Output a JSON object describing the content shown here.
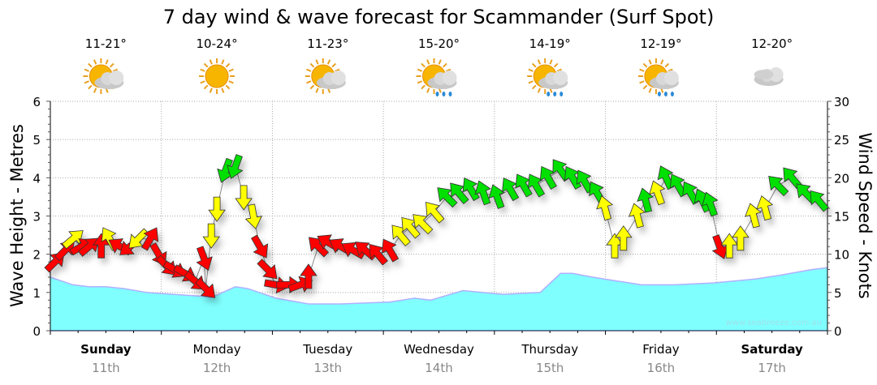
{
  "chart_data": {
    "type": "line",
    "title": "7 day wind & wave forecast for Scammander (Surf Spot)",
    "ylabel": "Wave Height - Metres",
    "ylabel_right": "Wind Speed - Knots",
    "ylim": [
      0,
      6
    ],
    "ylim_right": [
      0,
      30
    ],
    "yticks": [
      "0",
      "1",
      "2",
      "3",
      "4",
      "5",
      "6"
    ],
    "yticks_right": [
      "0",
      "5",
      "10",
      "15",
      "20",
      "25",
      "30"
    ],
    "grid": true,
    "watermark": "www.seabreeze.com.au",
    "days": [
      {
        "name": "Sunday",
        "date": "11th",
        "bold": true,
        "temp": "11-21°",
        "weather": "sun-cloud"
      },
      {
        "name": "Monday",
        "date": "12th",
        "bold": false,
        "temp": "10-24°",
        "weather": "sun"
      },
      {
        "name": "Tuesday",
        "date": "13th",
        "bold": false,
        "temp": "11-23°",
        "weather": "sun-cloud"
      },
      {
        "name": "Wednesday",
        "date": "14th",
        "bold": false,
        "temp": "15-20°",
        "weather": "sun-cloud-rain"
      },
      {
        "name": "Thursday",
        "date": "15th",
        "bold": false,
        "temp": "14-19°",
        "weather": "sun-cloud-rain"
      },
      {
        "name": "Friday",
        "date": "16th",
        "bold": false,
        "temp": "12-19°",
        "weather": "sun-cloud-rain"
      },
      {
        "name": "Saturday",
        "date": "17th",
        "bold": true,
        "temp": "12-20°",
        "weather": "cloud"
      }
    ],
    "colors": {
      "red": "#ff0000",
      "yellow": "#ffff00",
      "green": "#00e000",
      "wave": "#80ffff",
      "wave_edge": "#b0b0ff"
    },
    "wave_series": {
      "name": "Wave Height (m)",
      "points": [
        [
          0,
          1.4
        ],
        [
          4.9,
          1.2
        ],
        [
          8.4,
          1.15
        ],
        [
          11.9,
          1.15
        ],
        [
          16,
          1.1
        ],
        [
          20.7,
          1.0
        ],
        [
          24.2,
          0.97
        ],
        [
          33,
          0.9
        ],
        [
          34.8,
          0.87
        ],
        [
          40,
          1.15
        ],
        [
          42.7,
          1.1
        ],
        [
          48.8,
          0.85
        ],
        [
          55.8,
          0.7
        ],
        [
          62.8,
          0.7
        ],
        [
          73.4,
          0.75
        ],
        [
          78.7,
          0.85
        ],
        [
          82.2,
          0.8
        ],
        [
          89.2,
          1.05
        ],
        [
          98,
          0.95
        ],
        [
          105.9,
          1.0
        ],
        [
          110.3,
          1.5
        ],
        [
          112.9,
          1.5
        ],
        [
          117.3,
          1.4
        ],
        [
          122.5,
          1.3
        ],
        [
          127.8,
          1.2
        ],
        [
          134.8,
          1.2
        ],
        [
          143.6,
          1.25
        ],
        [
          152.4,
          1.35
        ],
        [
          157.7,
          1.45
        ],
        [
          164.7,
          1.6
        ],
        [
          168,
          1.65
        ]
      ]
    },
    "wind_series": {
      "name": "Wind Speed (knots)",
      "points": [
        [
          1,
          9,
          45,
          "red"
        ],
        [
          3.2,
          10.5,
          45,
          "red"
        ],
        [
          4.9,
          12,
          50,
          "yellow"
        ],
        [
          6.7,
          11,
          60,
          "red"
        ],
        [
          8.4,
          11,
          50,
          "red"
        ],
        [
          11,
          11,
          0,
          "red"
        ],
        [
          12.8,
          12,
          330,
          "yellow"
        ],
        [
          15.1,
          11,
          300,
          "red"
        ],
        [
          17.2,
          11,
          230,
          "red"
        ],
        [
          19,
          12,
          225,
          "yellow"
        ],
        [
          21.6,
          12,
          30,
          "red"
        ],
        [
          23.4,
          10,
          150,
          "red"
        ],
        [
          25.1,
          8.5,
          135,
          "red"
        ],
        [
          26.9,
          8,
          120,
          "red"
        ],
        [
          29.1,
          7.5,
          120,
          "red"
        ],
        [
          31.3,
          6.5,
          130,
          "red"
        ],
        [
          33.2,
          9.5,
          160,
          "red"
        ],
        [
          33.6,
          5.5,
          135,
          "red"
        ],
        [
          34.8,
          12.5,
          180,
          "yellow"
        ],
        [
          36,
          16,
          180,
          "yellow"
        ],
        [
          37.9,
          21,
          200,
          "green"
        ],
        [
          40,
          21.5,
          200,
          "green"
        ],
        [
          41.8,
          17.5,
          180,
          "yellow"
        ],
        [
          43.9,
          15,
          170,
          "yellow"
        ],
        [
          45.3,
          11,
          150,
          "red"
        ],
        [
          47,
          8,
          135,
          "red"
        ],
        [
          48.8,
          6,
          100,
          "red"
        ],
        [
          51.4,
          6,
          90,
          "red"
        ],
        [
          54,
          6,
          70,
          "red"
        ],
        [
          55.8,
          7,
          0,
          "red"
        ],
        [
          57.9,
          11,
          315,
          "red"
        ],
        [
          60.2,
          11.5,
          300,
          "red"
        ],
        [
          62.8,
          11,
          300,
          "red"
        ],
        [
          65.5,
          10.5,
          300,
          "red"
        ],
        [
          68.1,
          10.5,
          310,
          "red"
        ],
        [
          70.8,
          10,
          320,
          "red"
        ],
        [
          73.4,
          10.5,
          330,
          "red"
        ],
        [
          75.7,
          12.5,
          320,
          "yellow"
        ],
        [
          77.8,
          13.5,
          320,
          "yellow"
        ],
        [
          80.4,
          14,
          315,
          "yellow"
        ],
        [
          83,
          15.5,
          320,
          "yellow"
        ],
        [
          85.7,
          17.5,
          315,
          "green"
        ],
        [
          88.3,
          18,
          320,
          "green"
        ],
        [
          90.9,
          18.5,
          330,
          "green"
        ],
        [
          93.6,
          18,
          340,
          "green"
        ],
        [
          96.6,
          17.5,
          340,
          "green"
        ],
        [
          99.4,
          18.5,
          330,
          "green"
        ],
        [
          102.3,
          19,
          330,
          "green"
        ],
        [
          105,
          19,
          330,
          "green"
        ],
        [
          107.6,
          20,
          330,
          "green"
        ],
        [
          110.3,
          21,
          325,
          "green"
        ],
        [
          112.9,
          20,
          330,
          "green"
        ],
        [
          115.5,
          19.5,
          330,
          "green"
        ],
        [
          118.2,
          18,
          330,
          "green"
        ],
        [
          119.9,
          16,
          345,
          "yellow"
        ],
        [
          122,
          11,
          0,
          "yellow"
        ],
        [
          123.9,
          12,
          0,
          "yellow"
        ],
        [
          126.9,
          15,
          345,
          "yellow"
        ],
        [
          128.7,
          17,
          345,
          "green"
        ],
        [
          131.3,
          18,
          340,
          "yellow"
        ],
        [
          133.1,
          20,
          335,
          "green"
        ],
        [
          135.7,
          19,
          330,
          "green"
        ],
        [
          138.4,
          18,
          330,
          "green"
        ],
        [
          141,
          17,
          335,
          "green"
        ],
        [
          142.7,
          16.5,
          340,
          "green"
        ],
        [
          144.7,
          11,
          160,
          "red"
        ],
        [
          146.8,
          11,
          0,
          "yellow"
        ],
        [
          149.2,
          12,
          0,
          "yellow"
        ],
        [
          152,
          15,
          345,
          "yellow"
        ],
        [
          154.5,
          16,
          345,
          "yellow"
        ],
        [
          157.3,
          19,
          315,
          "green"
        ],
        [
          160.3,
          20,
          320,
          "green"
        ],
        [
          163.3,
          18,
          315,
          "green"
        ],
        [
          166.1,
          17,
          320,
          "green"
        ]
      ]
    }
  }
}
